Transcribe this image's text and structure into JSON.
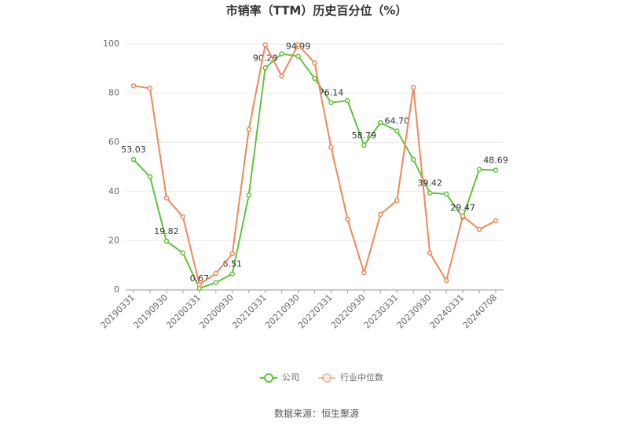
{
  "chart_data": {
    "type": "line",
    "title": "市销率（TTM）历史百分位（%）",
    "categories": [
      "20190331",
      null,
      "20190930",
      null,
      "20200331",
      null,
      "20200930",
      null,
      "20210331",
      null,
      "20210930",
      null,
      "20220331",
      null,
      "20220930",
      null,
      "20230331",
      null,
      "20230930",
      null,
      "20240331",
      null,
      "20240708"
    ],
    "series": [
      {
        "name": "公司",
        "color": "#5ec43a",
        "values": [
          53.03,
          46,
          19.82,
          15,
          0.67,
          3,
          6.51,
          38.5,
          90.28,
          96,
          94.99,
          86,
          76.14,
          77,
          58.79,
          68,
          64.7,
          53,
          39.42,
          39,
          29.47,
          49,
          48.69
        ],
        "value_labels": [
          "53.03",
          null,
          "19.82",
          null,
          "0.67",
          null,
          "6.51",
          null,
          "90.28",
          null,
          "94.99",
          null,
          "76.14",
          null,
          "58.79",
          null,
          "64.70",
          null,
          "39.42",
          null,
          "29.47",
          null,
          "48.69"
        ]
      },
      {
        "name": "行业中位数",
        "color": "#f0875a",
        "values": [
          83,
          82,
          37.4,
          29.7,
          2.2,
          6.7,
          14.7,
          65.2,
          99.7,
          87,
          99.7,
          92.3,
          58,
          28.8,
          7,
          30.7,
          36.4,
          82.4,
          15,
          3.8,
          30,
          24.6,
          28.1
        ]
      }
    ],
    "ylim": [
      0,
      100
    ],
    "yticks": [
      0,
      20,
      40,
      60,
      80,
      100
    ],
    "grid": true,
    "legend": "bottom",
    "source": "数据来源：恒生聚源"
  }
}
